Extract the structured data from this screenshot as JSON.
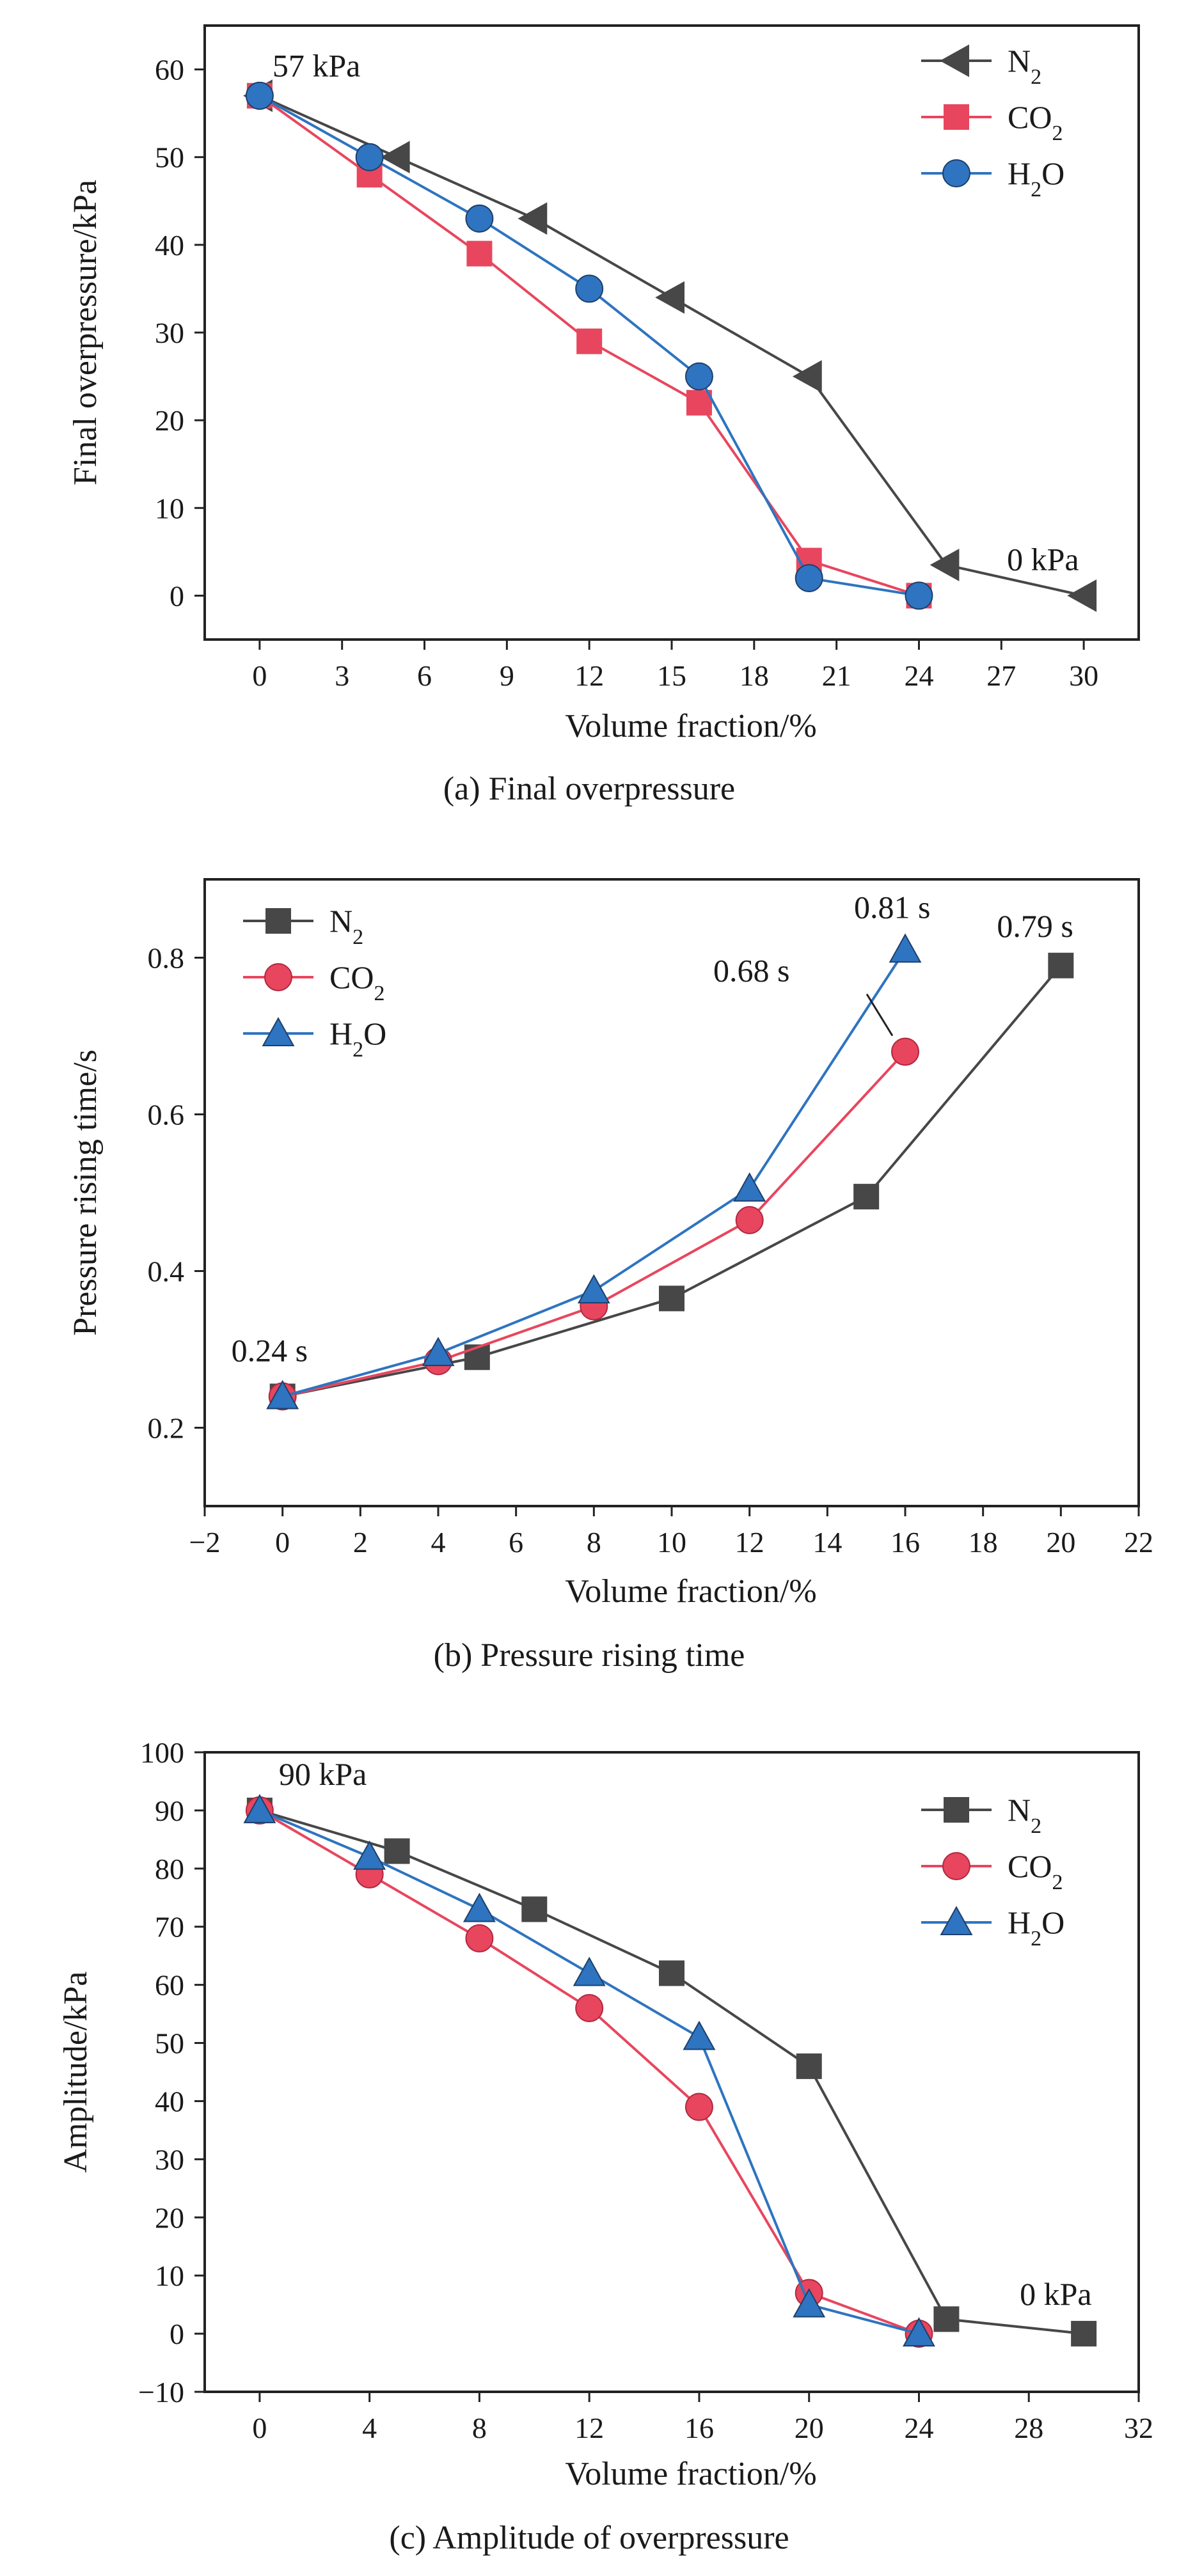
{
  "chart_data": [
    {
      "id": "a",
      "type": "line",
      "caption": "(a) Final overpressure",
      "xlabel": "Volume fraction/%",
      "ylabel": "Final overpressure/kPa",
      "xlim": [
        -2,
        32
      ],
      "ylim": [
        -5,
        65
      ],
      "xticks": [
        0,
        3,
        6,
        9,
        12,
        15,
        18,
        21,
        24,
        27,
        30
      ],
      "yticks": [
        0,
        10,
        20,
        30,
        40,
        50,
        60
      ],
      "grid": false,
      "legend": "top-right",
      "series": [
        {
          "name": "N2",
          "color": "#474747",
          "marker": "triangle-left",
          "x": [
            0,
            5,
            10,
            15,
            20,
            25,
            30
          ],
          "y": [
            57,
            50,
            43,
            34,
            25,
            3.5,
            0
          ]
        },
        {
          "name": "CO2",
          "color": "#e8465e",
          "marker": "square",
          "x": [
            0,
            4,
            8,
            12,
            16,
            20,
            24
          ],
          "y": [
            57,
            48,
            39,
            29,
            22,
            4,
            0
          ]
        },
        {
          "name": "H2O",
          "color": "#2e74c0",
          "marker": "circle",
          "x": [
            0,
            4,
            8,
            12,
            16,
            20,
            24
          ],
          "y": [
            57,
            50,
            43,
            35,
            25,
            2,
            0
          ]
        }
      ],
      "annotations": [
        {
          "text": "57 kPa",
          "x": 0,
          "y": 57,
          "placement": "above-right"
        },
        {
          "text": "0 kPa",
          "x": 30,
          "y": 0,
          "placement": "above"
        }
      ]
    },
    {
      "id": "b",
      "type": "line",
      "caption": "(b) Pressure rising time",
      "xlabel": "Volume fraction/%",
      "ylabel": "Pressure rising time/s",
      "xlim": [
        -2,
        22
      ],
      "ylim": [
        0.1,
        0.9
      ],
      "xticks": [
        -2,
        0,
        2,
        4,
        6,
        8,
        10,
        12,
        14,
        16,
        18,
        20,
        22
      ],
      "yticks": [
        0.2,
        0.4,
        0.6,
        0.8
      ],
      "grid": false,
      "legend": "top-left",
      "series": [
        {
          "name": "N2",
          "color": "#474747",
          "marker": "square",
          "x": [
            0,
            5,
            10,
            15,
            20
          ],
          "y": [
            0.24,
            0.29,
            0.365,
            0.495,
            0.79
          ]
        },
        {
          "name": "CO2",
          "color": "#e8465e",
          "marker": "circle",
          "x": [
            0,
            4,
            8,
            12,
            16
          ],
          "y": [
            0.24,
            0.285,
            0.355,
            0.465,
            0.68
          ]
        },
        {
          "name": "H2O",
          "color": "#2e74c0",
          "marker": "triangle-up",
          "x": [
            0,
            4,
            8,
            12,
            16
          ],
          "y": [
            0.24,
            0.295,
            0.375,
            0.505,
            0.81
          ]
        }
      ],
      "annotations": [
        {
          "text": "0.24 s",
          "x": 0,
          "y": 0.24,
          "placement": "above"
        },
        {
          "text": "0.81 s",
          "x": 16,
          "y": 0.81,
          "placement": "above"
        },
        {
          "text": "0.79 s",
          "x": 20,
          "y": 0.79,
          "placement": "above"
        },
        {
          "text": "0.68 s",
          "x": 16,
          "y": 0.68,
          "placement": "leader-left"
        }
      ]
    },
    {
      "id": "c",
      "type": "line",
      "caption": "(c) Amplitude of overpressure",
      "xlabel": "Volume fraction/%",
      "ylabel": "Amplitude/kPa",
      "xlim": [
        -2,
        32
      ],
      "ylim": [
        -10,
        100
      ],
      "xticks": [
        0,
        4,
        8,
        12,
        16,
        20,
        24,
        28,
        32
      ],
      "yticks": [
        -10,
        0,
        10,
        20,
        30,
        40,
        50,
        60,
        70,
        80,
        90,
        100
      ],
      "grid": false,
      "legend": "top-right",
      "series": [
        {
          "name": "N2",
          "color": "#474747",
          "marker": "square",
          "x": [
            0,
            5,
            10,
            15,
            20,
            25,
            30
          ],
          "y": [
            90,
            83,
            73,
            62,
            46,
            2.5,
            0
          ]
        },
        {
          "name": "CO2",
          "color": "#e8465e",
          "marker": "circle",
          "x": [
            0,
            4,
            8,
            12,
            16,
            20,
            24
          ],
          "y": [
            90,
            79,
            68,
            56,
            39,
            7,
            0
          ]
        },
        {
          "name": "H2O",
          "color": "#2e74c0",
          "marker": "triangle-up",
          "x": [
            0,
            4,
            8,
            12,
            16,
            20,
            24
          ],
          "y": [
            90,
            82,
            73,
            62,
            51,
            5,
            0
          ]
        }
      ],
      "annotations": [
        {
          "text": "90 kPa",
          "x": 0,
          "y": 90,
          "placement": "above-right"
        },
        {
          "text": "0 kPa",
          "x": 30,
          "y": 0,
          "placement": "above"
        }
      ]
    }
  ]
}
